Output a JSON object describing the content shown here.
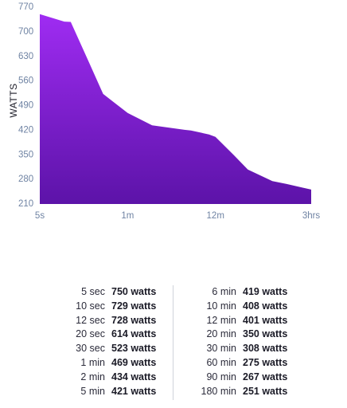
{
  "chart_data": {
    "type": "area",
    "title": "",
    "xlabel": "",
    "ylabel": "WATTS",
    "x_scale": "log",
    "x_unit": "seconds",
    "x_ticks": [
      {
        "label": "5s",
        "value": 5
      },
      {
        "label": "1m",
        "value": 60
      },
      {
        "label": "12m",
        "value": 720
      },
      {
        "label": "3hrs",
        "value": 10800
      }
    ],
    "ylim": [
      210,
      770
    ],
    "y_ticks": [
      210,
      280,
      350,
      420,
      490,
      560,
      630,
      700,
      770
    ],
    "grid": false,
    "fill_gradient": [
      "#9f2cf2",
      "#5c13a8"
    ],
    "points": [
      {
        "x": 5,
        "y": 750
      },
      {
        "x": 10,
        "y": 729
      },
      {
        "x": 12,
        "y": 728
      },
      {
        "x": 20,
        "y": 614
      },
      {
        "x": 30,
        "y": 523
      },
      {
        "x": 60,
        "y": 469
      },
      {
        "x": 120,
        "y": 434
      },
      {
        "x": 300,
        "y": 421
      },
      {
        "x": 360,
        "y": 419
      },
      {
        "x": 600,
        "y": 408
      },
      {
        "x": 720,
        "y": 401
      },
      {
        "x": 1200,
        "y": 350
      },
      {
        "x": 1800,
        "y": 308
      },
      {
        "x": 3600,
        "y": 275
      },
      {
        "x": 5400,
        "y": 267
      },
      {
        "x": 10800,
        "y": 251
      }
    ]
  },
  "table": {
    "left": [
      {
        "duration": "5 sec",
        "power": "750 watts"
      },
      {
        "duration": "10 sec",
        "power": "729 watts"
      },
      {
        "duration": "12 sec",
        "power": "728 watts"
      },
      {
        "duration": "20 sec",
        "power": "614 watts"
      },
      {
        "duration": "30 sec",
        "power": "523 watts"
      },
      {
        "duration": "1 min",
        "power": "469 watts"
      },
      {
        "duration": "2 min",
        "power": "434 watts"
      },
      {
        "duration": "5 min",
        "power": "421 watts"
      }
    ],
    "right": [
      {
        "duration": "6 min",
        "power": "419 watts"
      },
      {
        "duration": "10 min",
        "power": "408 watts"
      },
      {
        "duration": "12 min",
        "power": "401 watts"
      },
      {
        "duration": "20 min",
        "power": "350 watts"
      },
      {
        "duration": "30 min",
        "power": "308 watts"
      },
      {
        "duration": "60 min",
        "power": "275 watts"
      },
      {
        "duration": "90 min",
        "power": "267 watts"
      },
      {
        "duration": "180 min",
        "power": "251 watts"
      }
    ]
  }
}
